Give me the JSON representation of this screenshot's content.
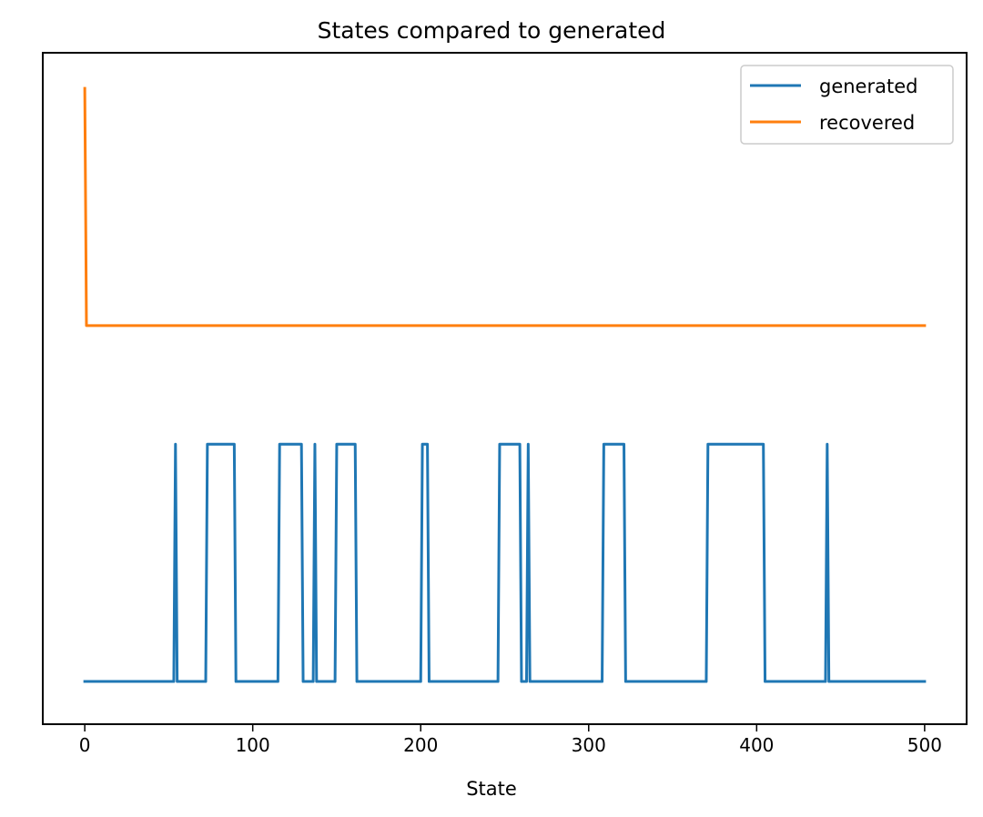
{
  "chart_data": {
    "type": "line",
    "title": "States compared to generated",
    "xlabel": "State",
    "ylabel": "",
    "xlim": [
      -25,
      525
    ],
    "ylim": [
      -0.18,
      2.65
    ],
    "xticks": [
      0,
      100,
      200,
      300,
      400,
      500
    ],
    "yticks": [],
    "grid": false,
    "legend_position": "top-right",
    "series": [
      {
        "name": "generated",
        "color": "#1f77b4",
        "segments": [
          [
            0,
            53,
            0
          ],
          [
            54,
            54,
            1
          ],
          [
            55,
            72,
            0
          ],
          [
            73,
            89,
            1
          ],
          [
            90,
            115,
            0
          ],
          [
            116,
            129,
            1
          ],
          [
            130,
            136,
            0
          ],
          [
            137,
            137,
            1
          ],
          [
            138,
            149,
            0
          ],
          [
            150,
            161,
            1
          ],
          [
            162,
            200,
            0
          ],
          [
            201,
            204,
            1
          ],
          [
            205,
            246,
            0
          ],
          [
            247,
            259,
            1
          ],
          [
            260,
            263,
            0
          ],
          [
            264,
            264,
            1
          ],
          [
            265,
            308,
            0
          ],
          [
            309,
            321,
            1
          ],
          [
            322,
            370,
            0
          ],
          [
            371,
            404,
            1
          ],
          [
            405,
            441,
            0
          ],
          [
            442,
            442,
            1
          ],
          [
            443,
            500,
            0
          ]
        ]
      },
      {
        "name": "recovered",
        "color": "#ff7f0e",
        "segments": [
          [
            0,
            0,
            2.5
          ],
          [
            1,
            500,
            1.5
          ]
        ]
      }
    ]
  }
}
